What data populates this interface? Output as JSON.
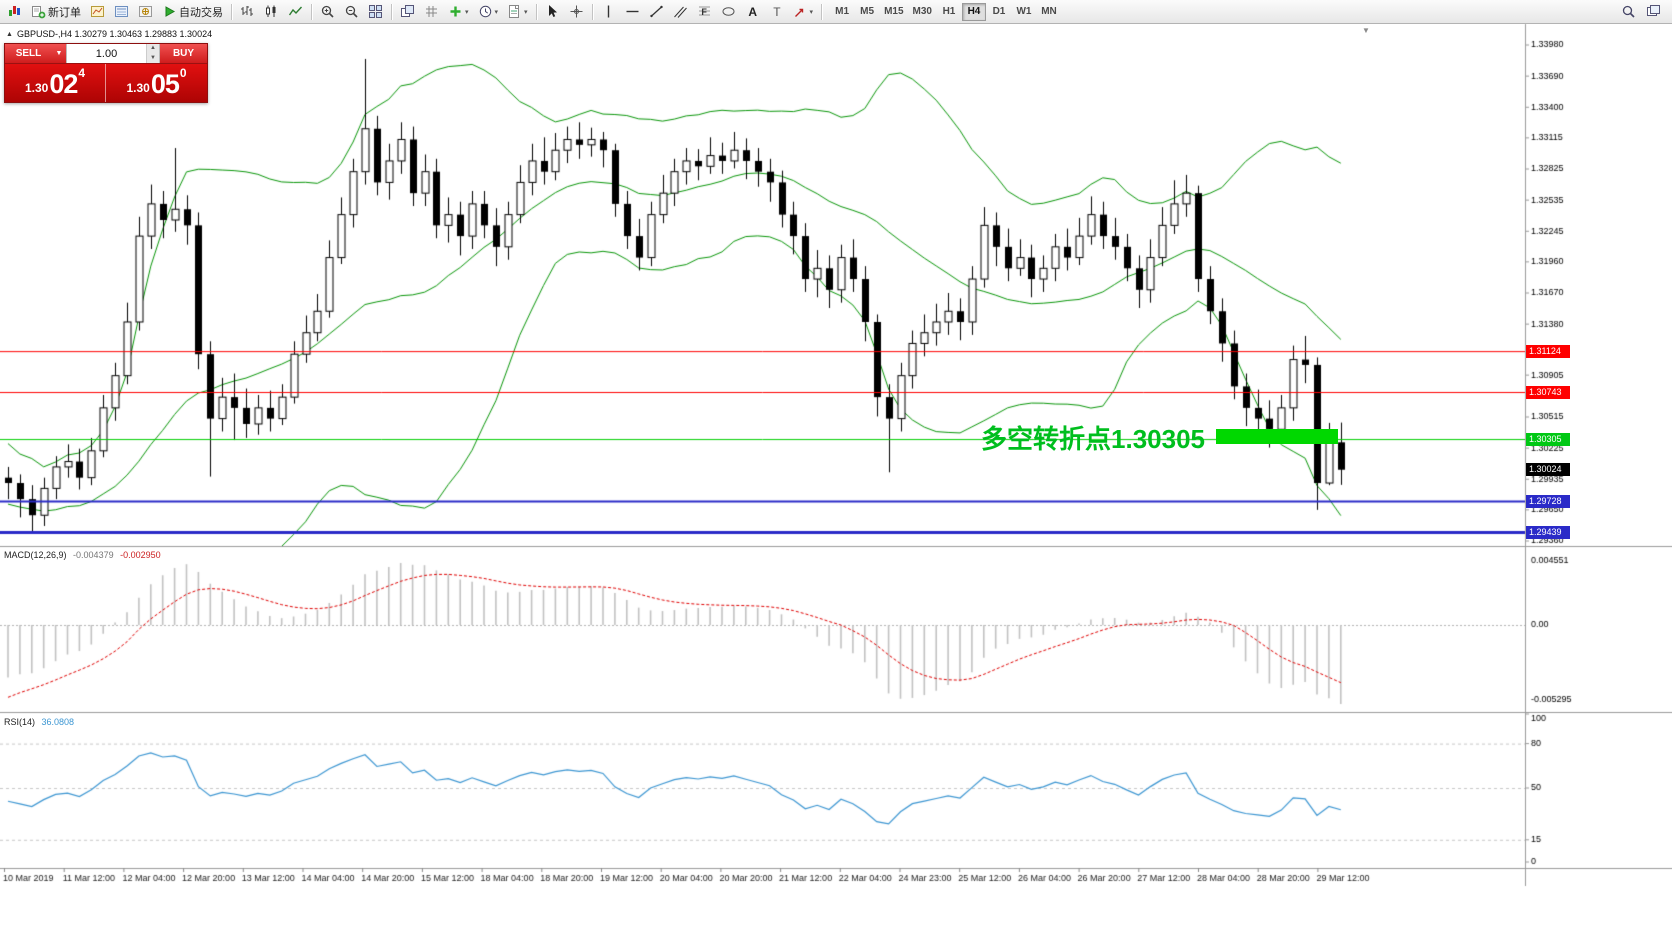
{
  "toolbar": {
    "left_items": [
      {
        "name": "app-chart-icon",
        "icon": "mt4"
      },
      {
        "name": "new-order-button",
        "icon": "neworder",
        "label": "新订单"
      },
      {
        "name": "chart-window-button",
        "icon": "chartwin"
      },
      {
        "name": "market-watch-button",
        "icon": "marketwatch"
      },
      {
        "name": "navigator-button",
        "icon": "navigator"
      },
      {
        "name": "autotrading-button",
        "icon": "autoplay",
        "label": "自动交易"
      },
      {
        "sep": true
      },
      {
        "name": "bar-chart-button",
        "icon": "bars"
      },
      {
        "name": "candlestick-chart-button",
        "icon": "candles"
      },
      {
        "name": "line-chart-button",
        "icon": "linechart"
      },
      {
        "sep": true
      },
      {
        "name": "zoom-in-button",
        "icon": "zoomin"
      },
      {
        "name": "zoom-out-button",
        "icon": "zoomout"
      },
      {
        "name": "tile-windows-button",
        "icon": "tile"
      },
      {
        "sep": true
      },
      {
        "name": "arrange-windows-button",
        "icon": "arrange"
      },
      {
        "name": "auto-scroll-button",
        "icon": "grid"
      },
      {
        "name": "indicators-button",
        "icon": "indicators",
        "dd": true
      },
      {
        "name": "periods-button",
        "icon": "clock",
        "dd": true
      },
      {
        "name": "templates-button",
        "icon": "template",
        "dd": true
      },
      {
        "sep": true
      },
      {
        "name": "cursor-button",
        "icon": "cursor"
      },
      {
        "name": "crosshair-button",
        "icon": "crosshair"
      },
      {
        "sep": true
      },
      {
        "name": "vertical-line-button",
        "icon": "vline"
      },
      {
        "name": "horizontal-line-button",
        "icon": "hline"
      },
      {
        "name": "trendline-button",
        "icon": "trendline"
      },
      {
        "name": "channel-button",
        "icon": "channel"
      },
      {
        "name": "fibonacci-button",
        "icon": "fibo"
      },
      {
        "name": "shapes-button",
        "icon": "shapes"
      },
      {
        "name": "text-button",
        "icon": "texta"
      },
      {
        "name": "text-label-button",
        "icon": "labelt"
      },
      {
        "name": "arrows-button",
        "icon": "arrowtool",
        "dd": true
      },
      {
        "sep": true
      }
    ],
    "timeframes": [
      {
        "label": "M1"
      },
      {
        "label": "M5"
      },
      {
        "label": "M15"
      },
      {
        "label": "M30"
      },
      {
        "label": "H1"
      },
      {
        "label": "H4",
        "active": true
      },
      {
        "label": "D1"
      },
      {
        "label": "W1"
      },
      {
        "label": "MN"
      }
    ],
    "right_items": [
      {
        "name": "search-button",
        "icon": "search"
      },
      {
        "name": "new-window-button",
        "icon": "cascade"
      }
    ]
  },
  "chart": {
    "symbol_header": "GBPUSD-,H4  1.30279 1.30463 1.29883 1.30024"
  },
  "trade_panel": {
    "sell_label": "SELL",
    "buy_label": "BUY",
    "volume": "1.00",
    "sell_price": {
      "prefix": "1.30",
      "big": "02",
      "sup": "4"
    },
    "buy_price": {
      "prefix": "1.30",
      "big": "05",
      "sup": "0"
    }
  },
  "annotation": {
    "text": "多空转折点1.30305",
    "color": "#00be1e",
    "box_color": "#00d800"
  },
  "price_axis": {
    "tags": [
      {
        "value": "1.31124",
        "price": 1.31124,
        "bg": "#ff0000",
        "interactable": true
      },
      {
        "value": "1.30743",
        "price": 1.30743,
        "bg": "#ff0000",
        "interactable": true
      },
      {
        "value": "1.30305",
        "price": 1.30305,
        "bg": "#00c814",
        "interactable": true
      },
      {
        "value": "1.30024",
        "price": 1.30024,
        "bg": "#000000",
        "interactable": false
      },
      {
        "value": "1.29728",
        "price": 1.29728,
        "bg": "#2a2ac8",
        "interactable": true
      },
      {
        "value": "1.29439",
        "price": 1.29439,
        "bg": "#2a2ac8",
        "interactable": true
      }
    ]
  },
  "macd_panel": {
    "name": "MACD(12,26,9)",
    "main_value": "-0.004379",
    "signal_value": "-0.002950",
    "axis": [
      "0.004551",
      "0.00",
      "-0.005295"
    ]
  },
  "rsi_panel": {
    "name": "RSI(14)",
    "value": "36.0808",
    "axis_values": [
      100,
      80,
      50,
      15,
      0
    ],
    "level_lines": [
      80,
      50,
      15
    ]
  },
  "chart_data": {
    "type": "candlestick",
    "symbol": "GBPUSD-",
    "timeframe": "H4",
    "ohlc_current": {
      "open": 1.30279,
      "high": 1.30463,
      "low": 1.29883,
      "close": 1.30024
    },
    "y_axis": {
      "range": [
        1.2936,
        1.3398
      ],
      "ticks": [
        {
          "label": "1.33980",
          "price": 1.3398
        },
        {
          "label": "1.33690",
          "price": 1.3369
        },
        {
          "label": "1.33400",
          "price": 1.334
        },
        {
          "label": "1.33115",
          "price": 1.33115
        },
        {
          "label": "1.32825",
          "price": 1.32825
        },
        {
          "label": "1.32535",
          "price": 1.32535
        },
        {
          "label": "1.32245",
          "price": 1.32245
        },
        {
          "label": "1.31960",
          "price": 1.3196
        },
        {
          "label": "1.31670",
          "price": 1.3167
        },
        {
          "label": "1.31380",
          "price": 1.3138
        },
        {
          "label": "1.30905",
          "price": 1.30905
        },
        {
          "label": "1.30515",
          "price": 1.30515
        },
        {
          "label": "1.30225",
          "price": 1.30225
        },
        {
          "label": "1.29935",
          "price": 1.29935
        },
        {
          "label": "1.29650",
          "price": 1.2965
        },
        {
          "label": "1.29360",
          "price": 1.2936
        }
      ]
    },
    "x_axis": {
      "labels": [
        "10 Mar 2019",
        "11 Mar 12:00",
        "12 Mar 04:00",
        "12 Mar 20:00",
        "13 Mar 12:00",
        "14 Mar 04:00",
        "14 Mar 20:00",
        "15 Mar 12:00",
        "18 Mar 04:00",
        "18 Mar 20:00",
        "19 Mar 12:00",
        "20 Mar 04:00",
        "20 Mar 20:00",
        "21 Mar 12:00",
        "22 Mar 04:00",
        "24 Mar 23:00",
        "25 Mar 12:00",
        "26 Mar 04:00",
        "26 Mar 20:00",
        "27 Mar 12:00",
        "28 Mar 04:00",
        "28 Mar 20:00",
        "29 Mar 12:00"
      ]
    },
    "overlays": {
      "bollinger_bands": {
        "period": 20,
        "deviation": 2,
        "color": "#089608"
      },
      "horizontal_lines": [
        {
          "price": 1.31124,
          "color": "#ff0000",
          "width": 1
        },
        {
          "price": 1.30743,
          "color": "#ff0000",
          "width": 1
        },
        {
          "price": 1.30305,
          "color": "#00d000",
          "width": 1
        },
        {
          "price": 1.29728,
          "color": "#2a2ac8",
          "width": 2
        },
        {
          "price": 1.29439,
          "color": "#2a2ac8",
          "width": 3
        }
      ]
    },
    "macd": {
      "fast": 12,
      "slow": 26,
      "signal": 9,
      "main_value": -0.004379,
      "signal_value": -0.00295
    },
    "rsi": {
      "period": 14,
      "value": 36.0808
    },
    "warmup_closes": [
      1.318,
      1.315,
      1.312,
      1.314,
      1.309,
      1.306,
      1.308,
      1.303,
      1.3,
      1.302,
      1.298,
      1.295,
      1.298,
      1.294,
      1.292,
      1.295,
      1.293,
      1.296,
      1.294,
      1.297,
      1.295,
      1.298,
      1.296,
      1.299,
      1.2975,
      1.2992
    ],
    "candles": [
      [
        1.2995,
        1.3005,
        1.2975,
        1.299
      ],
      [
        1.299,
        1.2998,
        1.2958,
        1.2975
      ],
      [
        1.2975,
        1.2988,
        1.2945,
        1.296
      ],
      [
        1.296,
        1.2995,
        1.295,
        1.2985
      ],
      [
        1.2985,
        1.3015,
        1.2975,
        1.3005
      ],
      [
        1.3005,
        1.3026,
        1.2995,
        1.301
      ],
      [
        1.301,
        1.3022,
        1.2984,
        1.2995
      ],
      [
        1.2995,
        1.3032,
        1.2988,
        1.302
      ],
      [
        1.302,
        1.3072,
        1.3014,
        1.306
      ],
      [
        1.306,
        1.3102,
        1.3048,
        1.309
      ],
      [
        1.309,
        1.3158,
        1.3082,
        1.314
      ],
      [
        1.314,
        1.3238,
        1.3132,
        1.322
      ],
      [
        1.322,
        1.3268,
        1.3208,
        1.325
      ],
      [
        1.325,
        1.3262,
        1.3218,
        1.3235
      ],
      [
        1.3235,
        1.3302,
        1.3224,
        1.3245
      ],
      [
        1.3245,
        1.3258,
        1.3212,
        1.323
      ],
      [
        1.323,
        1.3242,
        1.3096,
        1.311
      ],
      [
        1.311,
        1.3122,
        1.2996,
        1.305
      ],
      [
        1.305,
        1.3088,
        1.3038,
        1.307
      ],
      [
        1.307,
        1.3092,
        1.303,
        1.306
      ],
      [
        1.306,
        1.3078,
        1.3032,
        1.3045
      ],
      [
        1.3045,
        1.3072,
        1.3035,
        1.306
      ],
      [
        1.306,
        1.3076,
        1.3038,
        1.305
      ],
      [
        1.305,
        1.3082,
        1.3044,
        1.307
      ],
      [
        1.307,
        1.3122,
        1.3064,
        1.311
      ],
      [
        1.311,
        1.3146,
        1.3102,
        1.313
      ],
      [
        1.313,
        1.3166,
        1.3122,
        1.315
      ],
      [
        1.315,
        1.3216,
        1.3144,
        1.32
      ],
      [
        1.32,
        1.3256,
        1.3194,
        1.324
      ],
      [
        1.324,
        1.3292,
        1.3228,
        1.328
      ],
      [
        1.328,
        1.3385,
        1.3268,
        1.332
      ],
      [
        1.332,
        1.3332,
        1.3258,
        1.327
      ],
      [
        1.327,
        1.3306,
        1.3254,
        1.329
      ],
      [
        1.329,
        1.3326,
        1.3278,
        1.331
      ],
      [
        1.331,
        1.3322,
        1.3248,
        1.326
      ],
      [
        1.326,
        1.3296,
        1.3248,
        1.328
      ],
      [
        1.328,
        1.3292,
        1.3218,
        1.323
      ],
      [
        1.323,
        1.3256,
        1.3214,
        1.324
      ],
      [
        1.324,
        1.3252,
        1.3202,
        1.322
      ],
      [
        1.322,
        1.3262,
        1.3208,
        1.325
      ],
      [
        1.325,
        1.3262,
        1.3218,
        1.323
      ],
      [
        1.323,
        1.3246,
        1.3192,
        1.321
      ],
      [
        1.321,
        1.3252,
        1.3198,
        1.324
      ],
      [
        1.324,
        1.3286,
        1.3232,
        1.327
      ],
      [
        1.327,
        1.3306,
        1.3258,
        1.329
      ],
      [
        1.329,
        1.3312,
        1.3268,
        1.328
      ],
      [
        1.328,
        1.3316,
        1.3272,
        1.33
      ],
      [
        1.33,
        1.3322,
        1.3288,
        1.331
      ],
      [
        1.331,
        1.3326,
        1.3292,
        1.3305
      ],
      [
        1.3305,
        1.3321,
        1.3294,
        1.331
      ],
      [
        1.331,
        1.3317,
        1.3284,
        1.33
      ],
      [
        1.33,
        1.3306,
        1.3238,
        1.325
      ],
      [
        1.325,
        1.3262,
        1.3208,
        1.322
      ],
      [
        1.322,
        1.3236,
        1.3188,
        1.32
      ],
      [
        1.32,
        1.3252,
        1.3192,
        1.324
      ],
      [
        1.324,
        1.3277,
        1.3232,
        1.326
      ],
      [
        1.326,
        1.3292,
        1.3248,
        1.328
      ],
      [
        1.328,
        1.3302,
        1.3268,
        1.329
      ],
      [
        1.329,
        1.3301,
        1.3272,
        1.3285
      ],
      [
        1.3285,
        1.3312,
        1.3278,
        1.3295
      ],
      [
        1.3295,
        1.3307,
        1.3278,
        1.329
      ],
      [
        1.329,
        1.3317,
        1.3283,
        1.33
      ],
      [
        1.33,
        1.3311,
        1.3273,
        1.329
      ],
      [
        1.329,
        1.3302,
        1.3266,
        1.328
      ],
      [
        1.328,
        1.3292,
        1.3252,
        1.327
      ],
      [
        1.327,
        1.3281,
        1.3228,
        1.324
      ],
      [
        1.324,
        1.3252,
        1.3203,
        1.322
      ],
      [
        1.322,
        1.3232,
        1.3168,
        1.318
      ],
      [
        1.318,
        1.3207,
        1.3163,
        1.319
      ],
      [
        1.319,
        1.3202,
        1.3153,
        1.317
      ],
      [
        1.317,
        1.3212,
        1.3158,
        1.32
      ],
      [
        1.32,
        1.3217,
        1.3168,
        1.318
      ],
      [
        1.318,
        1.3192,
        1.3122,
        1.314
      ],
      [
        1.314,
        1.3147,
        1.3052,
        1.307
      ],
      [
        1.307,
        1.3082,
        1.3,
        1.305
      ],
      [
        1.305,
        1.3102,
        1.3038,
        1.309
      ],
      [
        1.309,
        1.3132,
        1.3078,
        1.312
      ],
      [
        1.312,
        1.3147,
        1.3108,
        1.313
      ],
      [
        1.313,
        1.3157,
        1.3118,
        1.314
      ],
      [
        1.314,
        1.3167,
        1.3128,
        1.315
      ],
      [
        1.315,
        1.3162,
        1.3123,
        1.314
      ],
      [
        1.314,
        1.3192,
        1.3128,
        1.318
      ],
      [
        1.318,
        1.3247,
        1.3172,
        1.323
      ],
      [
        1.323,
        1.3242,
        1.3192,
        1.321
      ],
      [
        1.321,
        1.3227,
        1.3178,
        1.319
      ],
      [
        1.319,
        1.3217,
        1.3183,
        1.32
      ],
      [
        1.32,
        1.3212,
        1.3163,
        1.318
      ],
      [
        1.318,
        1.3202,
        1.3168,
        1.319
      ],
      [
        1.319,
        1.3222,
        1.3178,
        1.321
      ],
      [
        1.321,
        1.3227,
        1.3188,
        1.32
      ],
      [
        1.32,
        1.3237,
        1.3193,
        1.322
      ],
      [
        1.322,
        1.3257,
        1.3212,
        1.324
      ],
      [
        1.324,
        1.3252,
        1.3208,
        1.322
      ],
      [
        1.322,
        1.3237,
        1.3198,
        1.321
      ],
      [
        1.321,
        1.3222,
        1.3178,
        1.319
      ],
      [
        1.319,
        1.3202,
        1.3153,
        1.317
      ],
      [
        1.317,
        1.3217,
        1.3158,
        1.32
      ],
      [
        1.32,
        1.3247,
        1.3192,
        1.323
      ],
      [
        1.323,
        1.3272,
        1.3222,
        1.325
      ],
      [
        1.325,
        1.3277,
        1.3238,
        1.326
      ],
      [
        1.326,
        1.3267,
        1.3168,
        1.318
      ],
      [
        1.318,
        1.3192,
        1.3138,
        1.315
      ],
      [
        1.315,
        1.3162,
        1.3103,
        1.312
      ],
      [
        1.312,
        1.3132,
        1.3068,
        1.308
      ],
      [
        1.308,
        1.3092,
        1.3043,
        1.306
      ],
      [
        1.306,
        1.3077,
        1.3033,
        1.305
      ],
      [
        1.305,
        1.3067,
        1.3023,
        1.304
      ],
      [
        1.304,
        1.3072,
        1.3028,
        1.306
      ],
      [
        1.306,
        1.3118,
        1.3048,
        1.3105
      ],
      [
        1.3105,
        1.3127,
        1.3083,
        1.31
      ],
      [
        1.31,
        1.3107,
        1.2965,
        1.299
      ],
      [
        1.299,
        1.3046,
        1.2988,
        1.30279
      ],
      [
        1.30279,
        1.30463,
        1.29883,
        1.30024
      ]
    ],
    "annotations": [
      {
        "text": "多空转折点1.30305",
        "price": 1.30305,
        "color": "#00be1e"
      }
    ]
  }
}
